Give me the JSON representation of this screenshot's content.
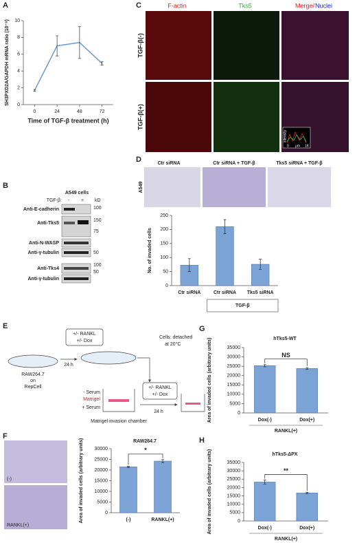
{
  "panel_labels": [
    "A",
    "B",
    "C",
    "D",
    "E",
    "F",
    "G",
    "H"
  ],
  "chart_data": [
    {
      "type": "line",
      "ylabel": "SH3PXD2A/GAPDH mRNA ratio (10⁻⁸)",
      "xlabel": "Time of TGF-β treatment (h)",
      "x": [
        0,
        24,
        48,
        72
      ],
      "xlim": [
        -12,
        84
      ],
      "xticks": [
        0,
        24,
        48,
        72
      ],
      "ylim": [
        0,
        10
      ],
      "yticks": [
        0,
        2,
        4,
        6,
        8,
        10
      ],
      "series": [
        {
          "color": "#6a9bd1",
          "values": [
            1.7,
            7.0,
            7.4,
            4.9
          ],
          "errors": [
            0.1,
            1.2,
            1.9,
            0.2
          ]
        }
      ]
    },
    {
      "type": "bar",
      "ylabel": "No. of invaded cells",
      "categories": [
        "Ctr siRNA",
        "Ctr siRNA",
        "Tks5 siRNA"
      ],
      "values": [
        73,
        210,
        76
      ],
      "errors": [
        23,
        25,
        18
      ],
      "color": "#7ba3d6",
      "ylim": [
        0,
        250
      ],
      "yticks": [
        0,
        50,
        100,
        150,
        200,
        250
      ],
      "group_label": "TGF-β"
    },
    {
      "type": "bar",
      "title": "RAW264.7",
      "ylabel": "Area of invaded cells (arbitrary units)",
      "categories": [
        "(-)",
        "RANKL(+)"
      ],
      "values": [
        21500,
        24200
      ],
      "errors": [
        300,
        700
      ],
      "color": "#7ba3d6",
      "ylim": [
        0,
        30000
      ],
      "yticks": [
        0,
        5000,
        10000,
        15000,
        20000,
        25000,
        30000
      ],
      "annotation": "*"
    },
    {
      "type": "bar",
      "title": "hTks5-WT",
      "ylabel": "Area of invaded cells (arbitrary units)",
      "categories": [
        "Dox(-)",
        "Dox(+)"
      ],
      "values": [
        25300,
        23800
      ],
      "errors": [
        600,
        500
      ],
      "color": "#7ba3d6",
      "ylim": [
        0,
        35000
      ],
      "yticks": [
        0,
        5000,
        10000,
        15000,
        20000,
        25000,
        30000,
        35000
      ],
      "annotation": "NS",
      "group_label": "RANKL(+)"
    },
    {
      "type": "bar",
      "title": "hTks5-ΔPX",
      "ylabel": "Area of invaded cells (arbitrary units)",
      "categories": [
        "Dox(-)",
        "Dox(+)"
      ],
      "values": [
        23300,
        16800
      ],
      "errors": [
        1200,
        400
      ],
      "color": "#7ba3d6",
      "ylim": [
        0,
        35000
      ],
      "yticks": [
        0,
        5000,
        10000,
        15000,
        20000,
        25000,
        30000,
        35000
      ],
      "annotation": "**",
      "group_label": "RANKL(+)"
    }
  ],
  "blot": {
    "cell_line": "A549 cells",
    "treatment": "TGF-β:",
    "minus": "-",
    "plus": "+",
    "unit": "kD",
    "antibodies": [
      "Anti-E-cadherin",
      "Anti-Tks5",
      "Anti-N-WASP",
      "Anti-γ-tubulin",
      "Anti-Tks4",
      "Anti-γ-tubulin"
    ],
    "markers": [
      "100",
      "150",
      "75",
      "50",
      "100",
      "50"
    ]
  },
  "micrographs": {
    "columns": [
      "F-actin",
      "Tks5",
      "Merge/",
      "Nuclei"
    ],
    "rows": [
      "TGF-β(-)",
      "TGF-β(+)"
    ],
    "inset": {
      "axis": "intensity",
      "start": "0",
      "unit": "μm",
      "end": "18"
    }
  },
  "invasion_images": {
    "columns": [
      "Ctr siRNA",
      "Ctr siRNA + TGF-β",
      "Tks5 siRNA + TGF-β"
    ],
    "row": "A549"
  },
  "schematic": {
    "box1": [
      "+/- RANKL",
      "+/- Dox"
    ],
    "step1": "24 h",
    "detach": [
      "Cells: detached",
      "at 20°C"
    ],
    "source": [
      "RAW264.7",
      "on",
      "RepCell"
    ],
    "layers": [
      "- Serum",
      "Matrigel",
      "+ Serum"
    ],
    "box2": [
      "+/- RANKL",
      "+/- Dox"
    ],
    "step2": "24 h",
    "chamber": "Matrigel invasion chamber"
  },
  "raw_images": [
    "(-)",
    "RANKL(+)"
  ]
}
